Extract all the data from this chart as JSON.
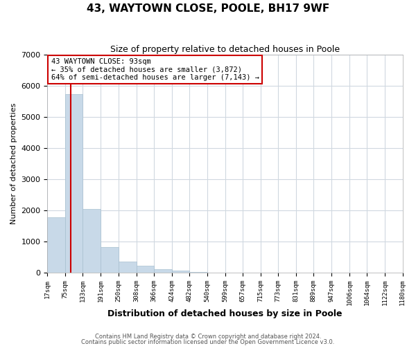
{
  "title": "43, WAYTOWN CLOSE, POOLE, BH17 9WF",
  "subtitle": "Size of property relative to detached houses in Poole",
  "xlabel": "Distribution of detached houses by size in Poole",
  "ylabel": "Number of detached properties",
  "bar_color": "#c8d9e8",
  "bar_edge_color": "#a8c0d0",
  "vline_color": "#cc0000",
  "annotation_box_color": "#cc0000",
  "annotation_line1": "43 WAYTOWN CLOSE: 93sqm",
  "annotation_line2": "← 35% of detached houses are smaller (3,872)",
  "annotation_line3": "64% of semi-detached houses are larger (7,143) →",
  "property_size": 93,
  "bin_edges": [
    17,
    75,
    133,
    191,
    250,
    308,
    366,
    424,
    482,
    540,
    599,
    657,
    715,
    773,
    831,
    889,
    947,
    1006,
    1064,
    1122,
    1180
  ],
  "bin_labels": [
    "17sqm",
    "75sqm",
    "133sqm",
    "191sqm",
    "250sqm",
    "308sqm",
    "366sqm",
    "424sqm",
    "482sqm",
    "540sqm",
    "599sqm",
    "657sqm",
    "715sqm",
    "773sqm",
    "831sqm",
    "889sqm",
    "947sqm",
    "1006sqm",
    "1064sqm",
    "1122sqm",
    "1180sqm"
  ],
  "counts": [
    1780,
    5740,
    2050,
    830,
    360,
    230,
    110,
    60,
    30,
    10,
    5,
    3,
    0,
    0,
    0,
    0,
    0,
    0,
    0,
    0
  ],
  "ylim": [
    0,
    7000
  ],
  "yticks": [
    0,
    1000,
    2000,
    3000,
    4000,
    5000,
    6000,
    7000
  ],
  "footer1": "Contains HM Land Registry data © Crown copyright and database right 2024.",
  "footer2": "Contains public sector information licensed under the Open Government Licence v3.0.",
  "background_color": "#ffffff",
  "grid_color": "#d0d8e0"
}
